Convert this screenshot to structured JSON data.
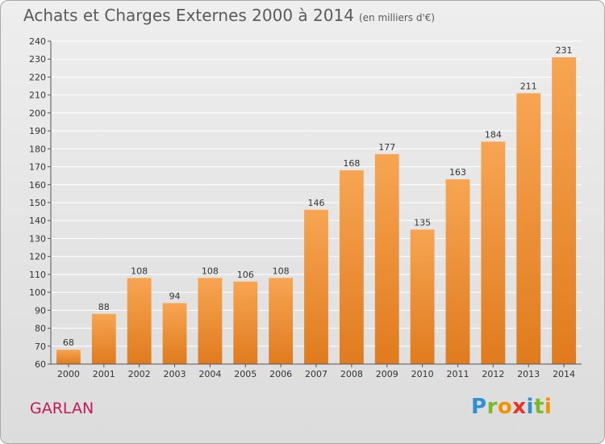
{
  "header": {
    "title": "Achats et Charges Externes 2000 à 2014",
    "subtitle": "(en milliers d'€)"
  },
  "footer": {
    "place": "GARLAN",
    "logo_letters": [
      "P",
      "r",
      "o",
      "x",
      "i",
      "t",
      "i"
    ],
    "logo_colors": [
      "#2d8fd5",
      "#7ab929",
      "#f39200",
      "#e6332a",
      "#2d8fd5",
      "#7ab929",
      "#f39200"
    ]
  },
  "chart_data": {
    "type": "bar",
    "title": "Achats et Charges Externes 2000 à 2014",
    "subtitle": "(en milliers d'€)",
    "categories": [
      "2000",
      "2001",
      "2002",
      "2003",
      "2004",
      "2005",
      "2006",
      "2007",
      "2008",
      "2009",
      "2010",
      "2011",
      "2012",
      "2013",
      "2014"
    ],
    "values": [
      68,
      88,
      108,
      94,
      108,
      106,
      108,
      146,
      168,
      177,
      135,
      163,
      184,
      211,
      231
    ],
    "ylim": [
      60,
      240
    ],
    "yticks": [
      60,
      70,
      80,
      90,
      100,
      110,
      120,
      130,
      140,
      150,
      160,
      170,
      180,
      190,
      200,
      210,
      220,
      230,
      240
    ],
    "grid": true,
    "bar_color_top": "#f7a552",
    "bar_color_bottom": "#e07b1e",
    "grid_color": "#ffffff"
  }
}
